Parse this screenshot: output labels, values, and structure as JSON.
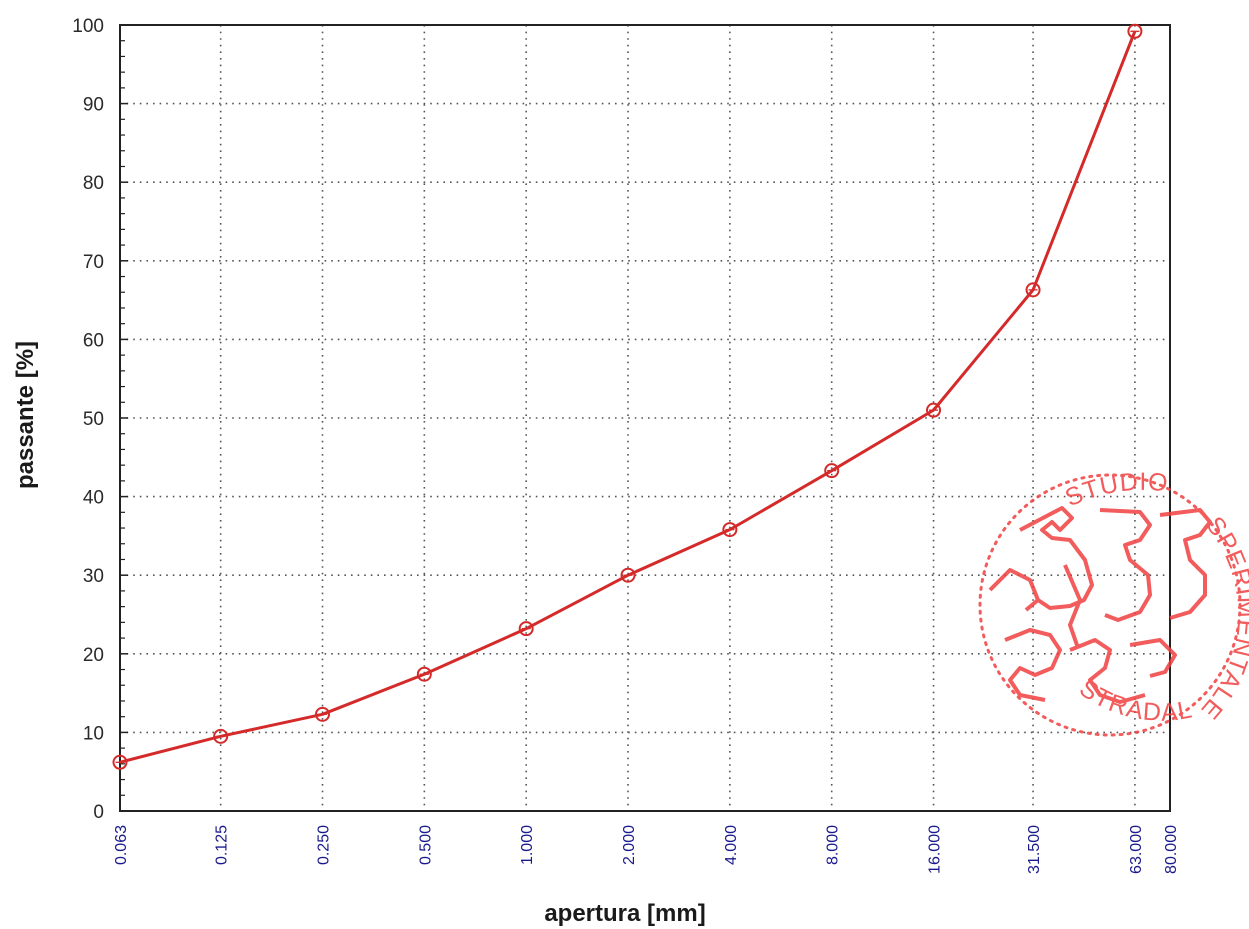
{
  "chart_data": {
    "type": "line",
    "title": "",
    "xlabel": "apertura [mm]",
    "ylabel": "passante [%]",
    "x_scale": "log",
    "x_ticks": [
      "0.063",
      "0.125",
      "0.250",
      "0.500",
      "1.000",
      "2.000",
      "4.000",
      "8.000",
      "16.000",
      "31.500",
      "63.000",
      "80.000"
    ],
    "y_ticks": [
      "0",
      "10",
      "20",
      "30",
      "40",
      "50",
      "60",
      "70",
      "80",
      "90",
      "100"
    ],
    "ylim": [
      0,
      100
    ],
    "grid": true,
    "colors": {
      "series": "#d42a2a",
      "grid": "#555555",
      "frame": "#222222"
    },
    "series": [
      {
        "x": [
          0.063,
          0.125,
          0.25,
          0.5,
          1.0,
          2.0,
          4.0,
          8.0,
          16.0,
          31.5,
          63.0
        ],
        "y": [
          6.2,
          9.5,
          12.3,
          17.4,
          23.2,
          30.0,
          35.8,
          43.3,
          51.0,
          66.3,
          99.2
        ],
        "marker": "circle"
      }
    ]
  },
  "stamp": {
    "text_top": "STUDIO",
    "text_right": "SPERIMENTALE",
    "text_bottom": "STRADALE",
    "color": "#f04040"
  }
}
